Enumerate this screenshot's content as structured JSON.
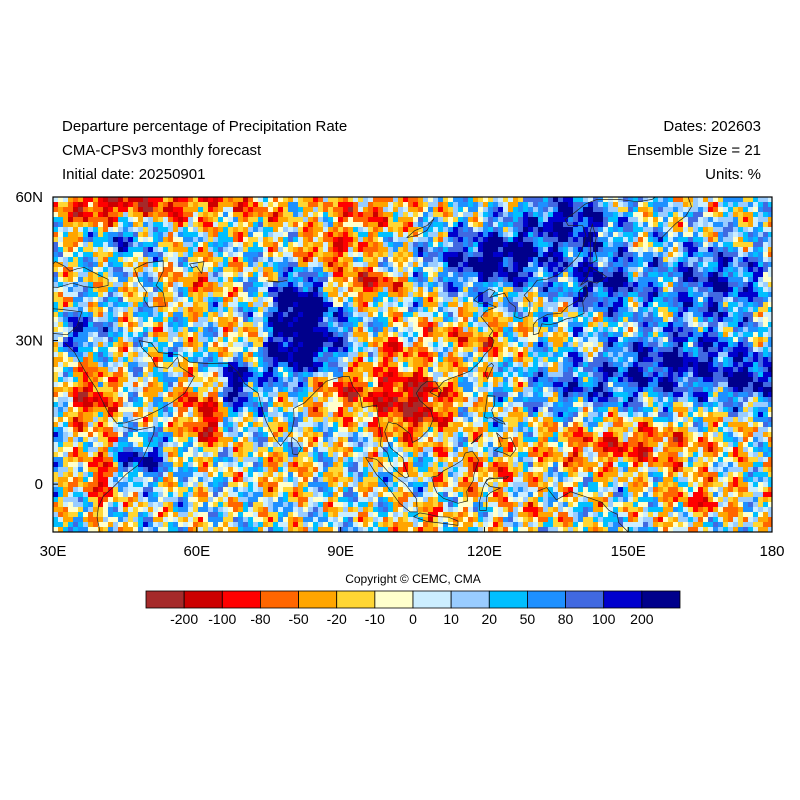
{
  "header": {
    "title": "Departure percentage of Precipitation Rate",
    "subtitle": "CMA-CPSv3 monthly forecast",
    "initial_date": "Initial date: 20250901",
    "dates": "Dates: 202603",
    "ensemble": "Ensemble Size = 21",
    "units": "Units: %"
  },
  "map": {
    "lon_range": [
      30,
      180
    ],
    "lat_range": [
      -10,
      60
    ],
    "lon_ticks": [
      "30E",
      "60E",
      "90E",
      "120E",
      "150E",
      "180"
    ],
    "lat_ticks": [
      "60N",
      "30N",
      "0"
    ]
  },
  "copyright": "Copyright © CEMC, CMA",
  "colorbar": {
    "colors": [
      "#a52a2a",
      "#cc0000",
      "#ff0000",
      "#ff6600",
      "#ffa500",
      "#ffd633",
      "#ffffcc",
      "#cceeff",
      "#99ccff",
      "#00bfff",
      "#1e90ff",
      "#4169e1",
      "#0000cd",
      "#00008b"
    ],
    "labels": [
      "-200",
      "-100",
      "-80",
      "-50",
      "-20",
      "-10",
      "0",
      "10",
      "20",
      "50",
      "80",
      "100",
      "200"
    ]
  }
}
